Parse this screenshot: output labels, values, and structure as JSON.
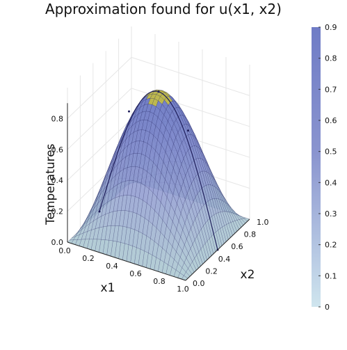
{
  "chart_data": {
    "type": "surface",
    "title": "Approximation found for u(x1, x2)",
    "xlabel": "x1",
    "ylabel": "x2",
    "zlabel": "Temperatures",
    "xlim": [
      0.0,
      1.0
    ],
    "ylim": [
      0.0,
      1.0
    ],
    "zlim": [
      0.0,
      0.9
    ],
    "x_ticks": [
      "0.0",
      "0.2",
      "0.4",
      "0.6",
      "0.8",
      "1.0"
    ],
    "y_ticks": [
      "0.0",
      "0.2",
      "0.4",
      "0.6",
      "0.8",
      "1.0"
    ],
    "z_ticks": [
      "0.0",
      "0.2",
      "0.4",
      "0.6",
      "0.8"
    ],
    "colorbar_ticks": [
      "0",
      "0.1",
      "0.2",
      "0.3",
      "0.4",
      "0.5",
      "0.6",
      "0.7",
      "0.8",
      "0.9"
    ],
    "colorbar_range": [
      0,
      0.9
    ],
    "colorbar_colors": [
      "#cfe5ee",
      "#8a94cf",
      "#6f7cc6"
    ],
    "surface_colors": {
      "low": "#a9c7cf",
      "mid": "#8a94cf",
      "high": "#6f7cc6",
      "peak": "#c7c03a",
      "edge": "#1e1e5a"
    },
    "function": "sin(pi*x1)*sin(pi*x2)",
    "sample_points": [
      {
        "x1": 0.0,
        "x2": 0.5,
        "u": 0.0
      },
      {
        "x1": 0.25,
        "x2": 0.5,
        "u": 0.71
      },
      {
        "x1": 0.5,
        "x2": 0.5,
        "u": 0.9
      },
      {
        "x1": 0.75,
        "x2": 0.5,
        "u": 0.71
      },
      {
        "x1": 1.0,
        "x2": 0.5,
        "u": 0.0
      }
    ],
    "grid": true
  }
}
